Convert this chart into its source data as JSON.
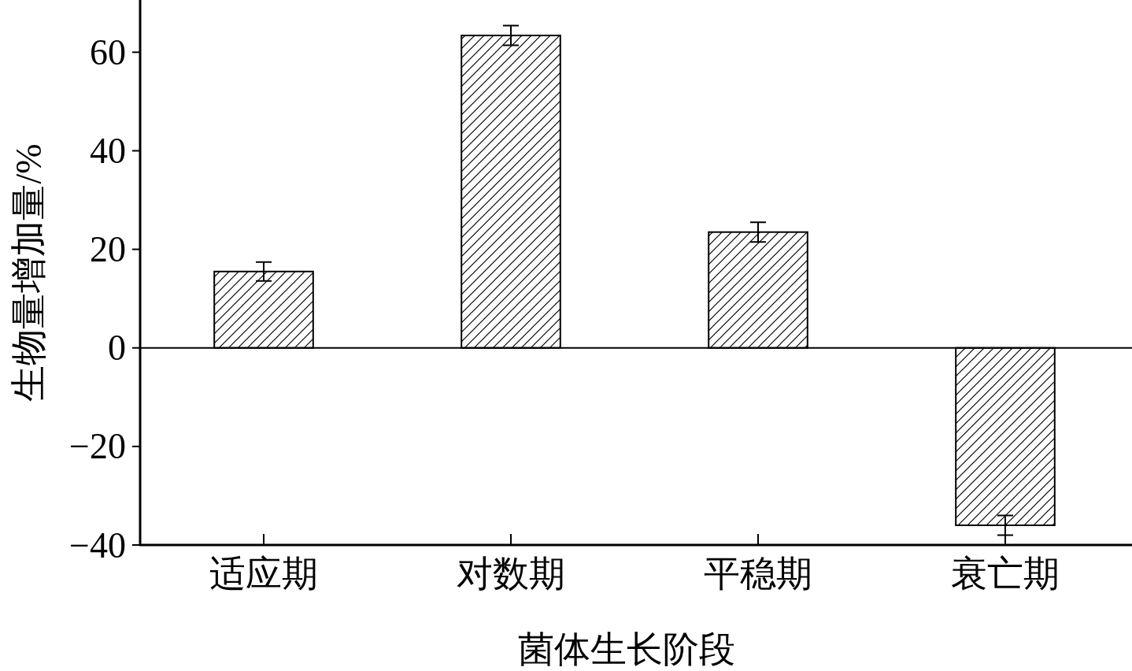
{
  "chart_data": {
    "type": "bar",
    "xlabel": "菌体生长阶段",
    "ylabel": "生物量增加量/%",
    "categories": [
      "适应期",
      "对数期",
      "平稳期",
      "衰亡期"
    ],
    "values": [
      15.5,
      63.4,
      23.5,
      -36
    ],
    "errors": [
      1.9,
      2,
      2,
      2
    ],
    "color": "#000000",
    "ylim": [
      -40,
      70.6
    ],
    "yticks": [
      -40,
      -20,
      0,
      20,
      40,
      60
    ],
    "ref_lines": [
      {
        "axis": "y",
        "value": 0
      }
    ],
    "grid": false
  }
}
